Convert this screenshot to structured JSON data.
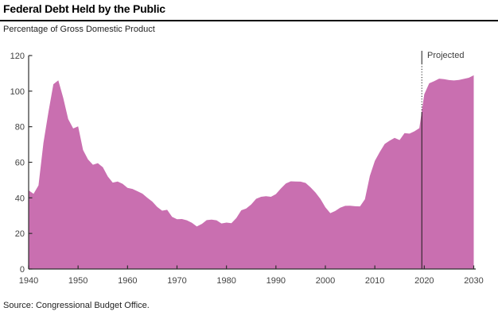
{
  "header": {
    "title": "Federal Debt Held by the Public",
    "subtitle": "Percentage of Gross Domestic Product"
  },
  "footer": {
    "source": "Source: Congressional Budget Office."
  },
  "chart_data": {
    "type": "area",
    "title": "Federal Debt Held by the Public",
    "ylabel": "Percentage of Gross Domestic Product",
    "xlim": [
      1940,
      2030
    ],
    "ylim": [
      0,
      120
    ],
    "xticks": [
      1940,
      1950,
      1960,
      1970,
      1980,
      1990,
      2000,
      2010,
      2020,
      2030
    ],
    "yticks": [
      0,
      20,
      40,
      60,
      80,
      100,
      120
    ],
    "grid": false,
    "legend": "none",
    "area_color": "#C96FB0",
    "axis_color": "#2e2e2e",
    "tick_label_color": "#424242",
    "projected_divider_x": 2019.5,
    "projected_label": "Projected",
    "x": [
      1940,
      1941,
      1942,
      1943,
      1944,
      1945,
      1946,
      1947,
      1948,
      1949,
      1950,
      1951,
      1952,
      1953,
      1954,
      1955,
      1956,
      1957,
      1958,
      1959,
      1960,
      1961,
      1962,
      1963,
      1964,
      1965,
      1966,
      1967,
      1968,
      1969,
      1970,
      1971,
      1972,
      1973,
      1974,
      1975,
      1976,
      1977,
      1978,
      1979,
      1980,
      1981,
      1982,
      1983,
      1984,
      1985,
      1986,
      1987,
      1988,
      1989,
      1990,
      1991,
      1992,
      1993,
      1994,
      1995,
      1996,
      1997,
      1998,
      1999,
      2000,
      2001,
      2002,
      2003,
      2004,
      2005,
      2006,
      2007,
      2008,
      2009,
      2010,
      2011,
      2012,
      2013,
      2014,
      2015,
      2016,
      2017,
      2018,
      2019,
      2020,
      2021,
      2022,
      2023,
      2024,
      2025,
      2026,
      2027,
      2028,
      2029,
      2030
    ],
    "values": [
      44.2,
      42.3,
      47.0,
      70.9,
      88.3,
      103.9,
      106.1,
      96.2,
      84.3,
      79.0,
      80.2,
      66.9,
      61.6,
      58.6,
      59.5,
      57.2,
      52.0,
      48.6,
      49.2,
      47.9,
      45.6,
      45.0,
      43.7,
      42.4,
      40.0,
      37.9,
      34.9,
      32.8,
      33.3,
      29.3,
      28.0,
      28.1,
      27.4,
      26.0,
      23.9,
      25.3,
      27.5,
      27.8,
      27.4,
      25.6,
      26.1,
      25.8,
      28.7,
      33.0,
      34.0,
      36.3,
      39.5,
      40.6,
      40.9,
      40.6,
      42.1,
      45.3,
      48.1,
      49.3,
      49.2,
      49.1,
      48.4,
      45.9,
      43.0,
      39.4,
      34.7,
      31.4,
      32.6,
      34.5,
      35.5,
      35.6,
      35.3,
      35.2,
      39.2,
      52.3,
      60.8,
      65.8,
      70.3,
      72.2,
      73.7,
      72.5,
      76.4,
      76.1,
      77.4,
      79.2,
      98.2,
      104.4,
      105.6,
      107.0,
      106.7,
      106.2,
      106.0,
      106.3,
      106.9,
      107.5,
      108.9
    ]
  }
}
